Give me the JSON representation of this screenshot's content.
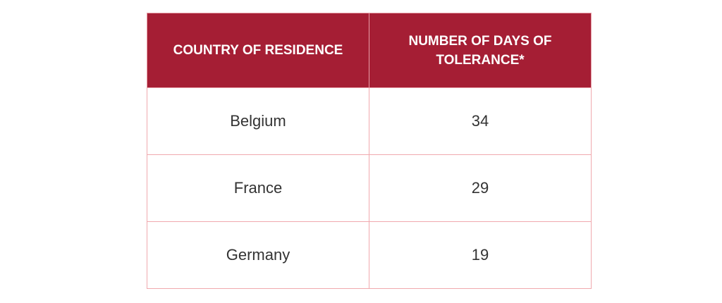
{
  "table": {
    "headers": [
      "COUNTRY OF RESIDENCE",
      "NUMBER OF DAYS OF TOLERANCE*"
    ],
    "rows": [
      [
        "Belgium",
        "34"
      ],
      [
        "France",
        "29"
      ],
      [
        "Germany",
        "19"
      ]
    ]
  },
  "colors": {
    "header_background": "#a51e34",
    "header_text": "#ffffff",
    "border": "#f0a9ae",
    "body_text": "#333333"
  }
}
